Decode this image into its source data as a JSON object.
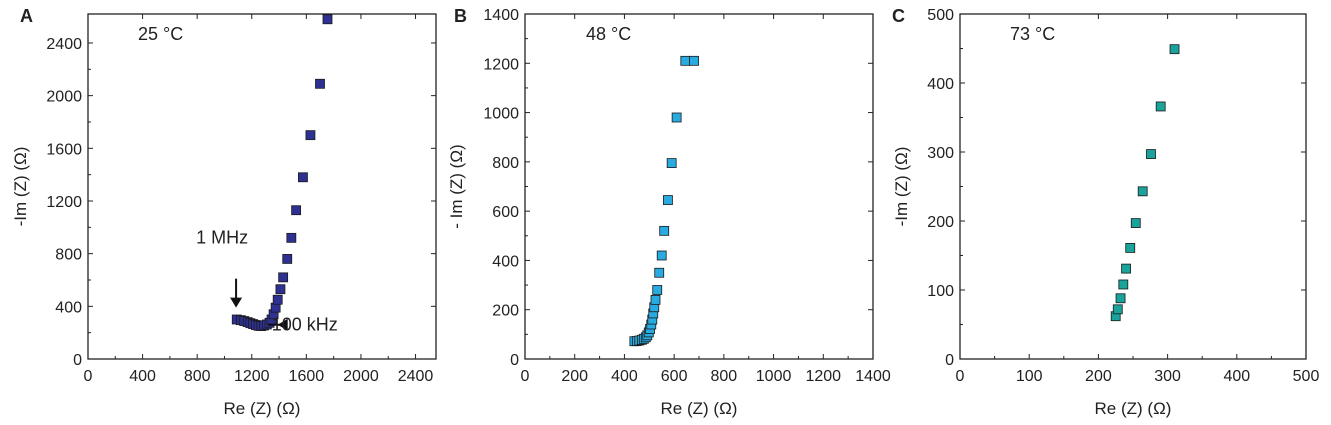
{
  "chart_data": [
    {
      "type": "scatter",
      "panel_label": "A",
      "temperature_label": "25 °C",
      "xlabel": "Re (Z) (Ω)",
      "ylabel": "-Im (Z) (Ω)",
      "xlim": [
        0,
        2550
      ],
      "ylim": [
        0,
        2620
      ],
      "xticks": [
        0,
        400,
        800,
        1200,
        1600,
        2000,
        2400
      ],
      "yticks": [
        0,
        400,
        800,
        1200,
        1600,
        2000,
        2400
      ],
      "marker_color": "#2e3192",
      "annotations": [
        {
          "text": "1 MHz",
          "x": 1085,
          "y": 710,
          "arrow_to": [
            1085,
            390
          ],
          "arrow_from": [
            1085,
            610
          ]
        },
        {
          "text": "100 kHz",
          "x": 1530,
          "y": 200,
          "arrow_to": [
            1390,
            230
          ],
          "arrow_from": [
            1720,
            200
          ]
        }
      ],
      "series": [
        {
          "x": [
            1090,
            1120,
            1145,
            1170,
            1190,
            1210,
            1230,
            1250,
            1270,
            1290,
            1310,
            1330,
            1345,
            1360,
            1375,
            1390,
            1410,
            1430,
            1460,
            1490,
            1525,
            1575,
            1630,
            1700
          ],
          "y": [
            300,
            295,
            288,
            280,
            272,
            265,
            258,
            252,
            250,
            255,
            262,
            275,
            300,
            340,
            390,
            450,
            530,
            620,
            760,
            920,
            1130,
            1380,
            1700,
            2090
          ]
        }
      ],
      "extra_point": {
        "x": 1755,
        "y": 2580
      }
    },
    {
      "type": "scatter",
      "panel_label": "B",
      "temperature_label": "48 °C",
      "xlabel": "Re (Z) (Ω)",
      "ylabel": "- Im (Z) (Ω)",
      "xlim": [
        0,
        1400
      ],
      "ylim": [
        0,
        1400
      ],
      "xticks": [
        0,
        200,
        400,
        600,
        800,
        1000,
        1200,
        1400
      ],
      "yticks": [
        0,
        200,
        400,
        600,
        800,
        1000,
        1200,
        1400
      ],
      "marker_color": "#29abe2",
      "series": [
        {
          "x": [
            440,
            450,
            460,
            470,
            478,
            486,
            492,
            498,
            503,
            508,
            512,
            516,
            520,
            525,
            532,
            540,
            550,
            560,
            575,
            590,
            610,
            645,
            680
          ],
          "y": [
            72,
            73,
            75,
            78,
            82,
            88,
            96,
            108,
            122,
            140,
            160,
            185,
            210,
            240,
            280,
            350,
            420,
            520,
            645,
            795,
            980,
            1210,
            1210
          ]
        }
      ]
    },
    {
      "type": "scatter",
      "panel_label": "C",
      "temperature_label": "73 °C",
      "xlabel": "Re (Z) (Ω)",
      "ylabel": "-Im (Z) (Ω)",
      "xlim": [
        0,
        500
      ],
      "ylim": [
        0,
        500
      ],
      "xticks": [
        0,
        100,
        200,
        300,
        400,
        500
      ],
      "yticks": [
        0,
        100,
        200,
        300,
        400,
        500
      ],
      "marker_color": "#1aa39a",
      "series": [
        {
          "x": [
            225,
            228,
            232,
            236,
            240,
            246,
            254,
            264,
            276,
            290,
            310
          ],
          "y": [
            62,
            72,
            88,
            108,
            131,
            161,
            197,
            243,
            297,
            366,
            449
          ]
        }
      ]
    }
  ]
}
